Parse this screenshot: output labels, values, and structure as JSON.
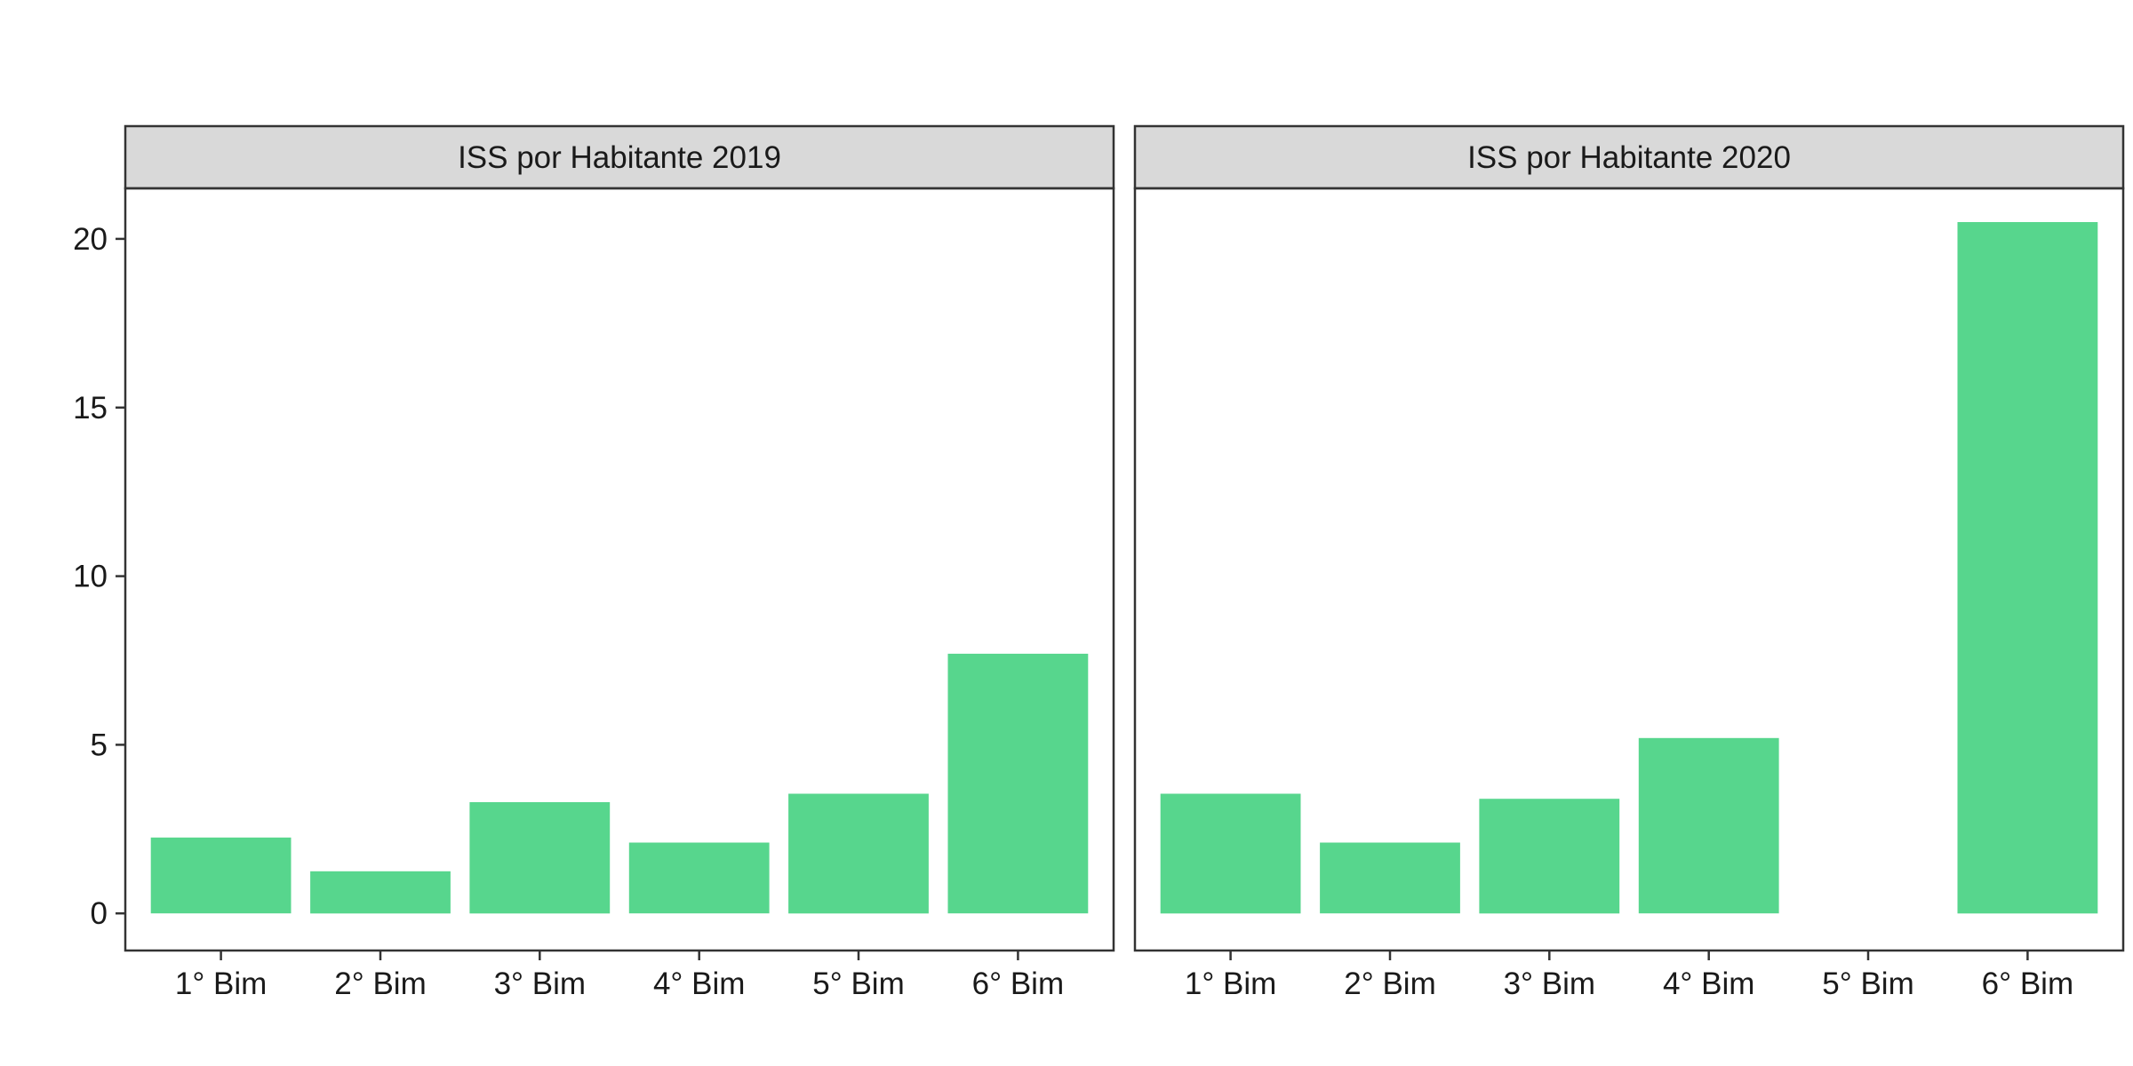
{
  "chart_data": [
    {
      "type": "bar",
      "title": "ISS por Habitante 2019",
      "xlabel": "",
      "ylabel": "",
      "categories": [
        "1° Bim",
        "2° Bim",
        "3° Bim",
        "4° Bim",
        "5° Bim",
        "6° Bim"
      ],
      "values": [
        2.25,
        1.25,
        3.3,
        2.1,
        3.55,
        7.7
      ],
      "ylim": [
        -1.1,
        21.5
      ],
      "yticks": [
        0,
        5,
        10,
        15,
        20
      ],
      "ytick_labels": [
        "0",
        "5",
        "10",
        "15",
        "20"
      ],
      "grid": false,
      "bar_color": "#57d68d"
    },
    {
      "type": "bar",
      "title": "ISS por Habitante 2020",
      "xlabel": "",
      "ylabel": "",
      "categories": [
        "1° Bim",
        "2° Bim",
        "3° Bim",
        "4° Bim",
        "5° Bim",
        "6° Bim"
      ],
      "values": [
        3.55,
        2.1,
        3.4,
        5.2,
        null,
        20.5
      ],
      "ylim": [
        -1.1,
        21.5
      ],
      "yticks": [
        0,
        5,
        10,
        15,
        20
      ],
      "ytick_labels": [
        "0",
        "5",
        "10",
        "15",
        "20"
      ],
      "grid": false,
      "bar_color": "#57d68d"
    }
  ]
}
